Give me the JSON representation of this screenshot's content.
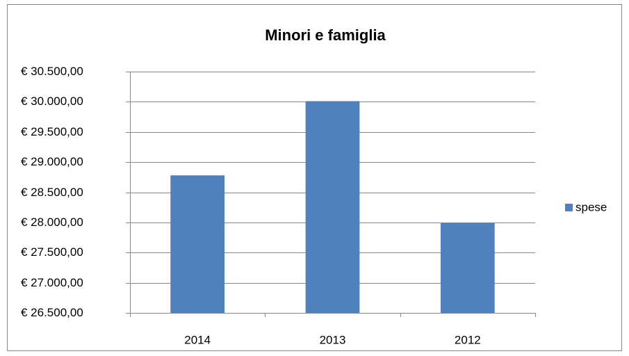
{
  "chart_data": {
    "type": "bar",
    "title": "Minori e famiglia",
    "categories": [
      "2014",
      "2013",
      "2012"
    ],
    "series": [
      {
        "name": "spese",
        "color": "#4f81bd",
        "values": [
          28780,
          30010,
          27990
        ]
      }
    ],
    "ylim": [
      26500,
      30500
    ],
    "yticks": [
      {
        "value": 26500,
        "label": "€ 26.500,00"
      },
      {
        "value": 27000,
        "label": "€ 27.000,00"
      },
      {
        "value": 27500,
        "label": "€ 27.500,00"
      },
      {
        "value": 28000,
        "label": "€ 28.000,00"
      },
      {
        "value": 28500,
        "label": "€ 28.500,00"
      },
      {
        "value": 29000,
        "label": "€ 29.000,00"
      },
      {
        "value": 29500,
        "label": "€ 29.500,00"
      },
      {
        "value": 30000,
        "label": "€ 30.000,00"
      },
      {
        "value": 30500,
        "label": "€ 30.500,00"
      }
    ],
    "grid": true,
    "legend": "right"
  }
}
